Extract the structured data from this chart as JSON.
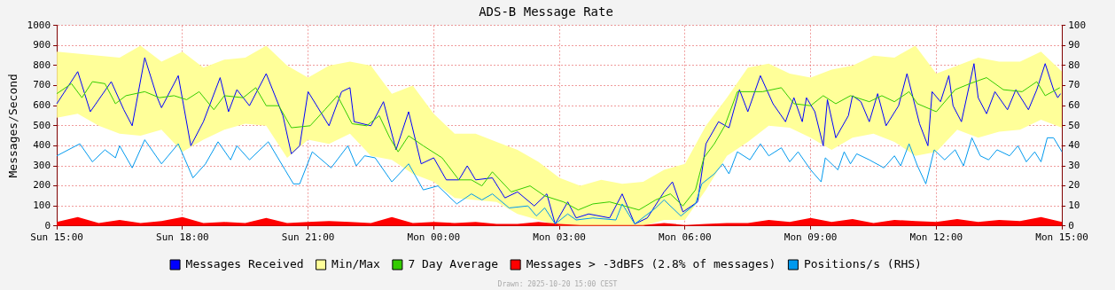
{
  "chart_data": {
    "type": "line",
    "title": "ADS-B Message Rate",
    "ylabel": "Messages/Second",
    "xlim": [
      "2025-10-19T15:00",
      "2025-10-20T15:00"
    ],
    "xticks": [
      {
        "value": "2025-10-19T15:00",
        "label": "Sun 15:00"
      },
      {
        "value": "2025-10-19T18:00",
        "label": "Sun 18:00"
      },
      {
        "value": "2025-10-19T21:00",
        "label": "Sun 21:00"
      },
      {
        "value": "2025-10-20T00:00",
        "label": "Mon 00:00"
      },
      {
        "value": "2025-10-20T03:00",
        "label": "Mon 03:00"
      },
      {
        "value": "2025-10-20T06:00",
        "label": "Mon 06:00"
      },
      {
        "value": "2025-10-20T09:00",
        "label": "Mon 09:00"
      },
      {
        "value": "2025-10-20T12:00",
        "label": "Mon 12:00"
      },
      {
        "value": "2025-10-20T15:00",
        "label": "Mon 15:00"
      }
    ],
    "ylim": [
      0,
      1000
    ],
    "yticks": [
      0,
      100,
      200,
      300,
      400,
      500,
      600,
      700,
      800,
      900,
      1000
    ],
    "y2lim": [
      0,
      100
    ],
    "y2ticks": [
      0,
      10,
      20,
      30,
      40,
      50,
      60,
      70,
      80,
      90,
      100
    ],
    "grid": true,
    "legend": "bottom",
    "annotations": [
      "Drawn: 2025-10-20 15:00 CEST"
    ],
    "x": [
      "2025-10-19T15:00",
      "2025-10-19T15:30",
      "2025-10-19T16:00",
      "2025-10-19T16:30",
      "2025-10-19T17:00",
      "2025-10-19T17:30",
      "2025-10-19T18:00",
      "2025-10-19T18:30",
      "2025-10-19T19:00",
      "2025-10-19T19:30",
      "2025-10-19T20:00",
      "2025-10-19T20:30",
      "2025-10-19T21:00",
      "2025-10-19T21:30",
      "2025-10-19T22:00",
      "2025-10-19T22:30",
      "2025-10-19T23:00",
      "2025-10-19T23:30",
      "2025-10-20T00:00",
      "2025-10-20T00:30",
      "2025-10-20T01:00",
      "2025-10-20T01:30",
      "2025-10-20T02:00",
      "2025-10-20T02:30",
      "2025-10-20T03:00",
      "2025-10-20T03:30",
      "2025-10-20T04:00",
      "2025-10-20T04:30",
      "2025-10-20T05:00",
      "2025-10-20T05:30",
      "2025-10-20T06:00",
      "2025-10-20T06:30",
      "2025-10-20T07:00",
      "2025-10-20T07:30",
      "2025-10-20T08:00",
      "2025-10-20T08:30",
      "2025-10-20T09:00",
      "2025-10-20T09:30",
      "2025-10-20T10:00",
      "2025-10-20T10:30",
      "2025-10-20T11:00",
      "2025-10-20T11:30",
      "2025-10-20T12:00",
      "2025-10-20T12:30",
      "2025-10-20T13:00",
      "2025-10-20T13:30",
      "2025-10-20T14:00",
      "2025-10-20T14:30",
      "2025-10-20T15:00"
    ],
    "series": [
      {
        "name": "Messages Received",
        "color": "#0000ff",
        "x": [
          "2025-10-19T15:00",
          "2025-10-19T15:30",
          "2025-10-19T15:48",
          "2025-10-19T16:18",
          "2025-10-19T16:36",
          "2025-10-19T16:48",
          "2025-10-19T17:06",
          "2025-10-19T17:24",
          "2025-10-19T17:30",
          "2025-10-19T17:54",
          "2025-10-19T18:12",
          "2025-10-19T18:30",
          "2025-10-19T18:54",
          "2025-10-19T19:06",
          "2025-10-19T19:18",
          "2025-10-19T19:36",
          "2025-10-19T20:00",
          "2025-10-19T20:24",
          "2025-10-19T20:36",
          "2025-10-19T20:48",
          "2025-10-19T21:00",
          "2025-10-19T21:30",
          "2025-10-19T21:48",
          "2025-10-19T22:00",
          "2025-10-19T22:06",
          "2025-10-19T22:30",
          "2025-10-19T22:48",
          "2025-10-19T23:06",
          "2025-10-19T23:24",
          "2025-10-19T23:42",
          "2025-10-20T00:00",
          "2025-10-20T00:18",
          "2025-10-20T00:36",
          "2025-10-20T00:48",
          "2025-10-20T01:00",
          "2025-10-20T01:24",
          "2025-10-20T01:42",
          "2025-10-20T02:00",
          "2025-10-20T02:24",
          "2025-10-20T02:42",
          "2025-10-20T02:54",
          "2025-10-20T03:12",
          "2025-10-20T03:24",
          "2025-10-20T03:42",
          "2025-10-20T04:12",
          "2025-10-20T04:30",
          "2025-10-20T04:48",
          "2025-10-20T05:06",
          "2025-10-20T05:30",
          "2025-10-20T05:42",
          "2025-10-20T05:57",
          "2025-10-20T06:18",
          "2025-10-20T06:30",
          "2025-10-20T06:48",
          "2025-10-20T07:03",
          "2025-10-20T07:18",
          "2025-10-20T07:30",
          "2025-10-20T07:48",
          "2025-10-20T08:06",
          "2025-10-20T08:24",
          "2025-10-20T08:36",
          "2025-10-20T08:48",
          "2025-10-20T08:54",
          "2025-10-20T09:06",
          "2025-10-20T09:18",
          "2025-10-20T09:24",
          "2025-10-20T09:36",
          "2025-10-20T09:54",
          "2025-10-20T10:00",
          "2025-10-20T10:12",
          "2025-10-20T10:24",
          "2025-10-20T10:36",
          "2025-10-20T10:48",
          "2025-10-20T11:06",
          "2025-10-20T11:18",
          "2025-10-20T11:36",
          "2025-10-20T11:48",
          "2025-10-20T11:54",
          "2025-10-20T12:06",
          "2025-10-20T12:18",
          "2025-10-20T12:24",
          "2025-10-20T12:36",
          "2025-10-20T12:54",
          "2025-10-20T13:00",
          "2025-10-20T13:12",
          "2025-10-20T13:24",
          "2025-10-20T13:42",
          "2025-10-20T13:54",
          "2025-10-20T14:12",
          "2025-10-20T14:24",
          "2025-10-20T14:36",
          "2025-10-20T14:48",
          "2025-10-20T14:54",
          "2025-10-20T14:58"
        ],
        "values": [
          610,
          770,
          570,
          720,
          580,
          500,
          840,
          640,
          590,
          750,
          400,
          520,
          740,
          570,
          680,
          600,
          760,
          550,
          360,
          400,
          670,
          500,
          670,
          690,
          520,
          500,
          620,
          380,
          570,
          310,
          340,
          230,
          230,
          300,
          230,
          240,
          140,
          170,
          100,
          160,
          10,
          120,
          40,
          60,
          40,
          160,
          10,
          40,
          170,
          220,
          70,
          120,
          410,
          520,
          490,
          680,
          570,
          750,
          610,
          520,
          640,
          520,
          640,
          570,
          400,
          630,
          440,
          550,
          650,
          620,
          520,
          660,
          500,
          600,
          760,
          510,
          400,
          670,
          620,
          750,
          600,
          520,
          810,
          640,
          560,
          670,
          580,
          680,
          580,
          680,
          810,
          680,
          640,
          660
        ]
      },
      {
        "name": "Min/Max",
        "type": "area",
        "color": "#ffff99",
        "values": [
          null,
          null,
          null,
          null,
          null,
          null,
          null,
          null,
          null,
          null,
          null,
          null,
          null,
          null,
          null,
          null,
          null,
          null,
          null,
          null,
          null,
          null,
          null,
          null,
          null,
          null,
          null,
          null,
          null,
          null,
          null,
          null,
          null,
          null,
          null,
          null,
          null,
          null,
          null,
          null,
          null,
          null,
          null,
          null,
          null,
          null,
          null,
          null,
          null
        ],
        "upper": [
          870,
          860,
          850,
          840,
          900,
          820,
          870,
          790,
          830,
          840,
          900,
          800,
          740,
          800,
          820,
          800,
          660,
          700,
          560,
          460,
          460,
          420,
          380,
          320,
          240,
          200,
          230,
          210,
          220,
          280,
          310,
          500,
          640,
          790,
          810,
          760,
          740,
          780,
          800,
          850,
          840,
          900,
          760,
          800,
          840,
          820,
          820,
          870,
          770
        ],
        "lower": [
          540,
          560,
          500,
          460,
          450,
          480,
          370,
          430,
          480,
          510,
          500,
          340,
          430,
          410,
          460,
          350,
          330,
          260,
          220,
          140,
          130,
          120,
          60,
          30,
          0,
          0,
          0,
          0,
          0,
          30,
          30,
          180,
          350,
          420,
          500,
          490,
          440,
          380,
          440,
          460,
          420,
          350,
          370,
          480,
          440,
          470,
          480,
          530,
          490
        ]
      },
      {
        "name": "7 Day Average",
        "color": "#33cc00",
        "x": [
          "2025-10-19T15:00",
          "2025-10-19T15:21",
          "2025-10-19T15:36",
          "2025-10-19T15:51",
          "2025-10-19T16:09",
          "2025-10-19T16:24",
          "2025-10-19T16:39",
          "2025-10-19T17:06",
          "2025-10-19T17:27",
          "2025-10-19T17:48",
          "2025-10-19T18:06",
          "2025-10-19T18:24",
          "2025-10-19T18:45",
          "2025-10-19T19:00",
          "2025-10-19T19:27",
          "2025-10-19T19:45",
          "2025-10-19T20:00",
          "2025-10-19T20:18",
          "2025-10-19T20:36",
          "2025-10-19T21:03",
          "2025-10-19T21:24",
          "2025-10-19T21:42",
          "2025-10-19T22:03",
          "2025-10-19T22:24",
          "2025-10-19T22:42",
          "2025-10-19T22:57",
          "2025-10-19T23:09",
          "2025-10-19T23:24",
          "2025-10-19T23:45",
          "2025-10-20T00:12",
          "2025-10-20T00:36",
          "2025-10-20T00:54",
          "2025-10-20T01:09",
          "2025-10-20T01:24",
          "2025-10-20T01:51",
          "2025-10-20T02:18",
          "2025-10-20T02:39",
          "2025-10-20T03:06",
          "2025-10-20T03:27",
          "2025-10-20T03:48",
          "2025-10-20T04:12",
          "2025-10-20T04:33",
          "2025-10-20T04:54",
          "2025-10-20T05:18",
          "2025-10-20T05:39",
          "2025-10-20T05:57",
          "2025-10-20T06:15",
          "2025-10-20T06:27",
          "2025-10-20T06:42",
          "2025-10-20T06:57",
          "2025-10-20T07:15",
          "2025-10-20T07:33",
          "2025-10-20T07:51",
          "2025-10-20T08:18",
          "2025-10-20T08:36",
          "2025-10-20T09:00",
          "2025-10-20T09:18",
          "2025-10-20T09:36",
          "2025-10-20T09:57",
          "2025-10-20T10:24",
          "2025-10-20T10:42",
          "2025-10-20T11:00",
          "2025-10-20T11:21",
          "2025-10-20T11:33",
          "2025-10-20T12:00",
          "2025-10-20T12:27",
          "2025-10-20T12:48",
          "2025-10-20T13:12",
          "2025-10-20T13:36",
          "2025-10-20T14:03",
          "2025-10-20T14:24",
          "2025-10-20T14:36",
          "2025-10-20T14:57"
        ],
        "values": [
          660,
          710,
          640,
          720,
          710,
          610,
          650,
          670,
          640,
          650,
          630,
          670,
          580,
          650,
          640,
          690,
          600,
          600,
          490,
          500,
          580,
          650,
          510,
          500,
          550,
          440,
          370,
          450,
          400,
          340,
          230,
          230,
          200,
          270,
          170,
          200,
          150,
          120,
          80,
          110,
          120,
          100,
          80,
          130,
          160,
          100,
          180,
          340,
          410,
          500,
          670,
          670,
          670,
          690,
          610,
          600,
          650,
          610,
          650,
          620,
          650,
          620,
          670,
          610,
          570,
          680,
          710,
          740,
          680,
          670,
          720,
          650,
          690
        ]
      },
      {
        "name": "Messages > -3dBFS (2.8% of messages)",
        "type": "area",
        "color": "#ff0000",
        "values": [
          20,
          45,
          15,
          30,
          15,
          25,
          45,
          15,
          20,
          15,
          40,
          15,
          20,
          25,
          20,
          15,
          45,
          15,
          20,
          15,
          20,
          10,
          10,
          20,
          10,
          5,
          5,
          5,
          5,
          15,
          5,
          10,
          15,
          15,
          30,
          20,
          40,
          20,
          35,
          15,
          30,
          25,
          20,
          35,
          20,
          30,
          25,
          45,
          20
        ]
      },
      {
        "name": "Positions/s (RHS)",
        "axis": "y2",
        "color": "#0099ee",
        "x": [
          "2025-10-19T15:00",
          "2025-10-19T15:33",
          "2025-10-19T15:51",
          "2025-10-19T16:09",
          "2025-10-19T16:24",
          "2025-10-19T16:30",
          "2025-10-19T16:48",
          "2025-10-19T17:06",
          "2025-10-19T17:30",
          "2025-10-19T17:54",
          "2025-10-19T18:15",
          "2025-10-19T18:33",
          "2025-10-19T18:51",
          "2025-10-19T19:09",
          "2025-10-19T19:18",
          "2025-10-19T19:36",
          "2025-10-19T20:03",
          "2025-10-19T20:27",
          "2025-10-19T20:39",
          "2025-10-19T20:48",
          "2025-10-19T21:06",
          "2025-10-19T21:33",
          "2025-10-19T21:57",
          "2025-10-19T22:09",
          "2025-10-19T22:21",
          "2025-10-19T22:36",
          "2025-10-19T23:00",
          "2025-10-19T23:24",
          "2025-10-19T23:45",
          "2025-10-20T00:06",
          "2025-10-20T00:33",
          "2025-10-20T00:54",
          "2025-10-20T01:09",
          "2025-10-20T01:24",
          "2025-10-20T01:48",
          "2025-10-20T02:15",
          "2025-10-20T02:27",
          "2025-10-20T02:39",
          "2025-10-20T02:54",
          "2025-10-20T03:12",
          "2025-10-20T03:24",
          "2025-10-20T03:48",
          "2025-10-20T04:21",
          "2025-10-20T04:30",
          "2025-10-20T04:48",
          "2025-10-20T05:18",
          "2025-10-20T05:30",
          "2025-10-20T05:54",
          "2025-10-20T06:15",
          "2025-10-20T06:24",
          "2025-10-20T06:42",
          "2025-10-20T06:54",
          "2025-10-20T07:03",
          "2025-10-20T07:15",
          "2025-10-20T07:33",
          "2025-10-20T07:48",
          "2025-10-20T08:00",
          "2025-10-20T08:18",
          "2025-10-20T08:30",
          "2025-10-20T08:42",
          "2025-10-20T09:00",
          "2025-10-20T09:15",
          "2025-10-20T09:21",
          "2025-10-20T09:39",
          "2025-10-20T09:48",
          "2025-10-20T09:57",
          "2025-10-20T10:06",
          "2025-10-20T10:24",
          "2025-10-20T10:45",
          "2025-10-20T11:00",
          "2025-10-20T11:09",
          "2025-10-20T11:21",
          "2025-10-20T11:33",
          "2025-10-20T11:45",
          "2025-10-20T11:57",
          "2025-10-20T12:12",
          "2025-10-20T12:27",
          "2025-10-20T12:39",
          "2025-10-20T12:51",
          "2025-10-20T13:03",
          "2025-10-20T13:15",
          "2025-10-20T13:27",
          "2025-10-20T13:45",
          "2025-10-20T13:57",
          "2025-10-20T14:09",
          "2025-10-20T14:21",
          "2025-10-20T14:30",
          "2025-10-20T14:39",
          "2025-10-20T14:48",
          "2025-10-20T15:00"
        ],
        "values": [
          35,
          41,
          32,
          38,
          34,
          40,
          29,
          43,
          31,
          41,
          24,
          31,
          42,
          33,
          40,
          33,
          42,
          28,
          21,
          21,
          37,
          29,
          40,
          30,
          35,
          34,
          22,
          31,
          18,
          20,
          11,
          16,
          13,
          16,
          9,
          10,
          5,
          9,
          1,
          6,
          3,
          4,
          3,
          11,
          1,
          9,
          13,
          5,
          11,
          21,
          26,
          31,
          26,
          37,
          33,
          41,
          35,
          39,
          32,
          37,
          28,
          22,
          34,
          28,
          37,
          31,
          36,
          33,
          29,
          35,
          30,
          41,
          30,
          21,
          38,
          33,
          38,
          30,
          44,
          35,
          33,
          38,
          35,
          40,
          32,
          37,
          32,
          44,
          44,
          37
        ]
      }
    ]
  }
}
